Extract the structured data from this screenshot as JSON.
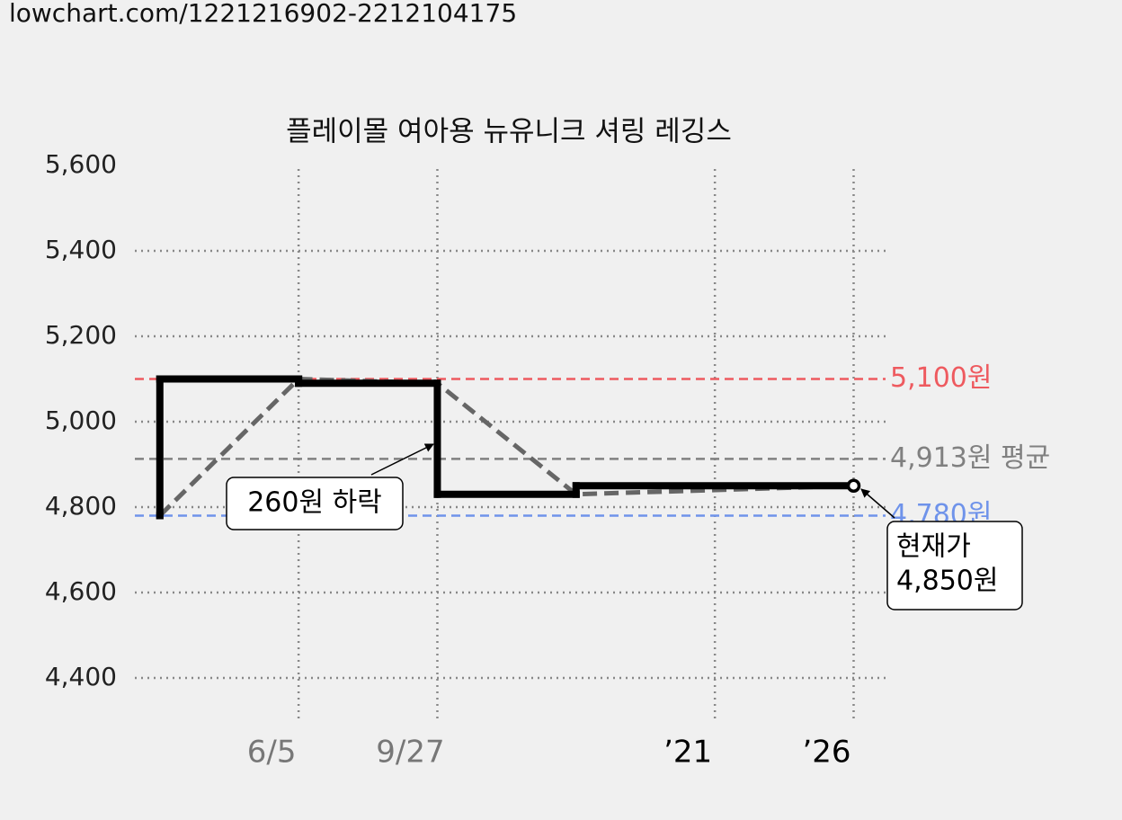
{
  "url": "lowchart.com/1221216902-2212104175",
  "chart_data": {
    "type": "step",
    "title": "플레이몰 여아용 뉴유니크 셔링 레깅스",
    "x": [
      0,
      0,
      1,
      2,
      3,
      5
    ],
    "series": [
      {
        "color": "#000000",
        "values": [
          4780,
          5100,
          5090,
          4830,
          4850,
          4850
        ]
      }
    ],
    "trend": {
      "color": "#666666",
      "x": [
        0,
        1,
        2,
        3,
        5
      ],
      "values": [
        4780,
        5100,
        5090,
        4830,
        4850
      ]
    },
    "xlim": [
      -0.18,
      5.23
    ],
    "xticks": [
      {
        "value": 1,
        "label": "6/5"
      },
      {
        "value": 2,
        "label": "9/27"
      },
      {
        "value": 4,
        "label": "’21"
      },
      {
        "value": 5,
        "label": "’26"
      }
    ],
    "xtick_colors": [
      "#777777",
      "#777777",
      "#000000",
      "#000000"
    ],
    "ylim": [
      4300,
      5600
    ],
    "yticks": [
      {
        "value": 4400,
        "label": "4,400"
      },
      {
        "value": 4600,
        "label": "4,600"
      },
      {
        "value": 4800,
        "label": "4,800"
      },
      {
        "value": 5000,
        "label": "5,000"
      },
      {
        "value": 5200,
        "label": "5,200"
      },
      {
        "value": 5400,
        "label": "5,400"
      },
      {
        "value": 5600,
        "label": "5,600"
      }
    ],
    "grid": true,
    "reference_lines": [
      {
        "value": 5100,
        "label": "5,100원",
        "color": "#ee5a5f"
      },
      {
        "value": 4913,
        "label": "4,913원 평균",
        "color": "#808080"
      },
      {
        "value": 4780,
        "label": "4,780원",
        "color": "#6f93ea"
      }
    ],
    "annotations": [
      {
        "lines": [
          "260원 하락"
        ]
      },
      {
        "lines": [
          "현재가",
          "4,850원"
        ]
      }
    ]
  }
}
